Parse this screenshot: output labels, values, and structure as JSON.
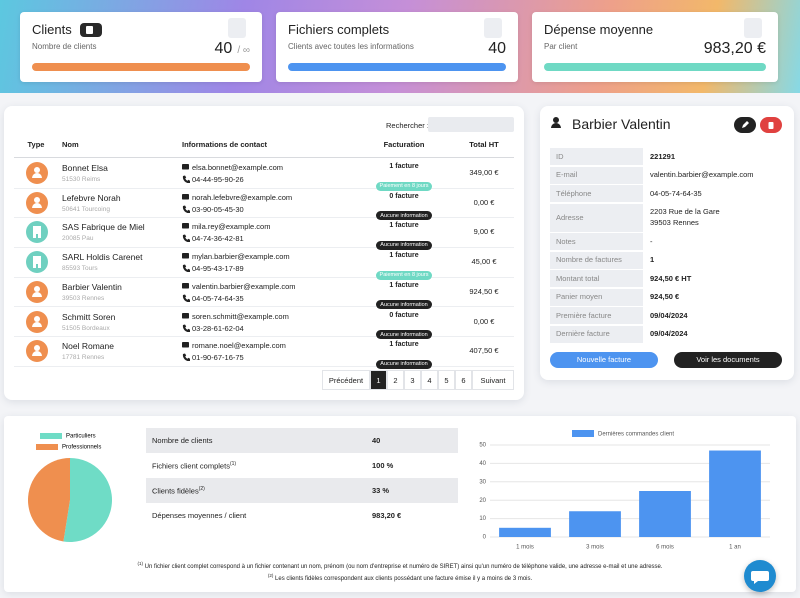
{
  "top_cards": [
    {
      "title": "Clients",
      "subtitle": "Nombre de clients",
      "value": "40",
      "suffix": "/ ∞",
      "color": "#ef8f4f"
    },
    {
      "title": "Fichiers complets",
      "subtitle": "Clients avec toutes les informations",
      "value": "40",
      "color": "#4d94f0"
    },
    {
      "title": "Dépense moyenne",
      "subtitle": "Par client",
      "value": "983,20 €",
      "color": "#6fd9c4"
    }
  ],
  "table": {
    "search_label": "Rechercher :",
    "headers": [
      "Type",
      "Nom",
      "Informations de contact",
      "Facturation",
      "Total HT"
    ],
    "rows": [
      {
        "type": "person",
        "name": "Bonnet Elsa",
        "city": "51530 Reims",
        "email": "elsa.bonnet@example.com",
        "phone": "04-44-95-90-26",
        "invoices": "1 facture",
        "status": "Paiement en 8 jours",
        "status_style": "success",
        "total": "349,00 €"
      },
      {
        "type": "person",
        "name": "Lefebvre Norah",
        "city": "50641 Tourcoing",
        "email": "norah.lefebvre@example.com",
        "phone": "03-90-05-45-30",
        "invoices": "0 facture",
        "status": "Aucune information",
        "status_style": "dark",
        "total": "0,00 €"
      },
      {
        "type": "company",
        "name": "SAS Fabrique de Miel",
        "city": "20085 Pau",
        "email": "mila.rey@example.com",
        "phone": "04-74-36-42-81",
        "invoices": "1 facture",
        "status": "Aucune information",
        "status_style": "dark",
        "total": "9,00 €"
      },
      {
        "type": "company",
        "name": "SARL Holdis Carenet",
        "city": "85593 Tours",
        "email": "mylan.barbier@example.com",
        "phone": "04-95-43-17-89",
        "invoices": "1 facture",
        "status": "Paiement en 8 jours",
        "status_style": "success",
        "total": "45,00 €"
      },
      {
        "type": "person",
        "name": "Barbier Valentin",
        "city": "39503 Rennes",
        "email": "valentin.barbier@example.com",
        "phone": "04-05-74-64-35",
        "invoices": "1 facture",
        "status": "Aucune information",
        "status_style": "dark",
        "total": "924,50 €"
      },
      {
        "type": "person",
        "name": "Schmitt Soren",
        "city": "51505 Bordeaux",
        "email": "soren.schmitt@example.com",
        "phone": "03-28-61-62-04",
        "invoices": "0 facture",
        "status": "Aucune information",
        "status_style": "dark",
        "total": "0,00 €"
      },
      {
        "type": "person",
        "name": "Noel Romane",
        "city": "17781 Rennes",
        "email": "romane.noel@example.com",
        "phone": "01-90-67-16-75",
        "invoices": "1 facture",
        "status": "Aucune information",
        "status_style": "dark",
        "total": "407,50 €"
      }
    ],
    "pagination": {
      "previous": "Précédent",
      "pages": [
        "1",
        "2",
        "3",
        "4",
        "5",
        "6"
      ],
      "next": "Suivant",
      "active": 0
    }
  },
  "detail": {
    "name": "Barbier Valentin",
    "fields": [
      {
        "label": "ID",
        "value": [
          "221291"
        ],
        "bold": true
      },
      {
        "label": "E-mail",
        "value": [
          "valentin.barbier@example.com"
        ]
      },
      {
        "label": "Téléphone",
        "value": [
          "04-05-74-64-35"
        ]
      },
      {
        "label": "Adresse",
        "value": [
          "2203 Rue de la Gare",
          "39503 Rennes"
        ]
      },
      {
        "label": "Notes",
        "value": [
          "-"
        ]
      },
      {
        "label": "Nombre de factures",
        "value": [
          "1"
        ],
        "bold": true
      },
      {
        "label": "Montant total",
        "value": [
          "924,50 € HT"
        ],
        "bold": true
      },
      {
        "label": "Panier moyen",
        "value": [
          "924,50 €"
        ],
        "bold": true
      },
      {
        "label": "Première facture",
        "value": [
          "09/04/2024"
        ],
        "bold": true
      },
      {
        "label": "Dernière facture",
        "value": [
          "09/04/2024"
        ],
        "bold": true
      }
    ],
    "buttons": [
      "Nouvelle facture",
      "Voir les documents"
    ]
  },
  "stats": [
    {
      "label": "Nombre de clients",
      "value": "40"
    },
    {
      "label": "Fichiers client complets",
      "note": "(1)",
      "value": "100 %"
    },
    {
      "label": "Clients fidèles",
      "note": "(2)",
      "value": "33 %"
    },
    {
      "label": "Dépenses moyennes / client",
      "value": "983,20 €"
    }
  ],
  "footnotes": [
    {
      "mark": "(1)",
      "text": "Un fichier client complet correspond à un fichier contenant un nom, prénom (ou nom d'entreprise et numéro de SIRET) ainsi qu'un numéro de téléphone valide, une adresse e-mail et une adresse."
    },
    {
      "mark": "(2)",
      "text": "Les clients fidèles correspondent aux clients possédant une facture émise il y a moins de 3 mois."
    }
  ],
  "chart_data": [
    {
      "type": "pie",
      "categories": [
        "Particuliers",
        "Professionnels"
      ],
      "values": [
        21,
        19
      ],
      "colors": [
        "#6fdcc6",
        "#ef8f4f"
      ]
    },
    {
      "type": "bar",
      "categories": [
        "1 mois",
        "3 mois",
        "6 mois",
        "1 an"
      ],
      "series": [
        {
          "name": "Dernières commandes client",
          "color": "#4d94f0",
          "values": [
            5,
            14,
            25,
            47
          ]
        }
      ],
      "ylim": [
        0,
        50
      ],
      "yticks": [
        0,
        10,
        20,
        30,
        40,
        50
      ],
      "grid": true
    }
  ]
}
